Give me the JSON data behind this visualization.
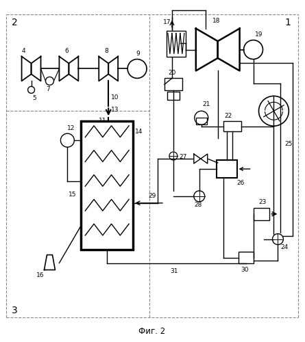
{
  "title": "Фиг. 2",
  "bg_color": "#ffffff",
  "line_color": "#000000",
  "dashed_color": "#888888",
  "fig_width": 4.45,
  "fig_height": 5.0,
  "dpi": 100
}
